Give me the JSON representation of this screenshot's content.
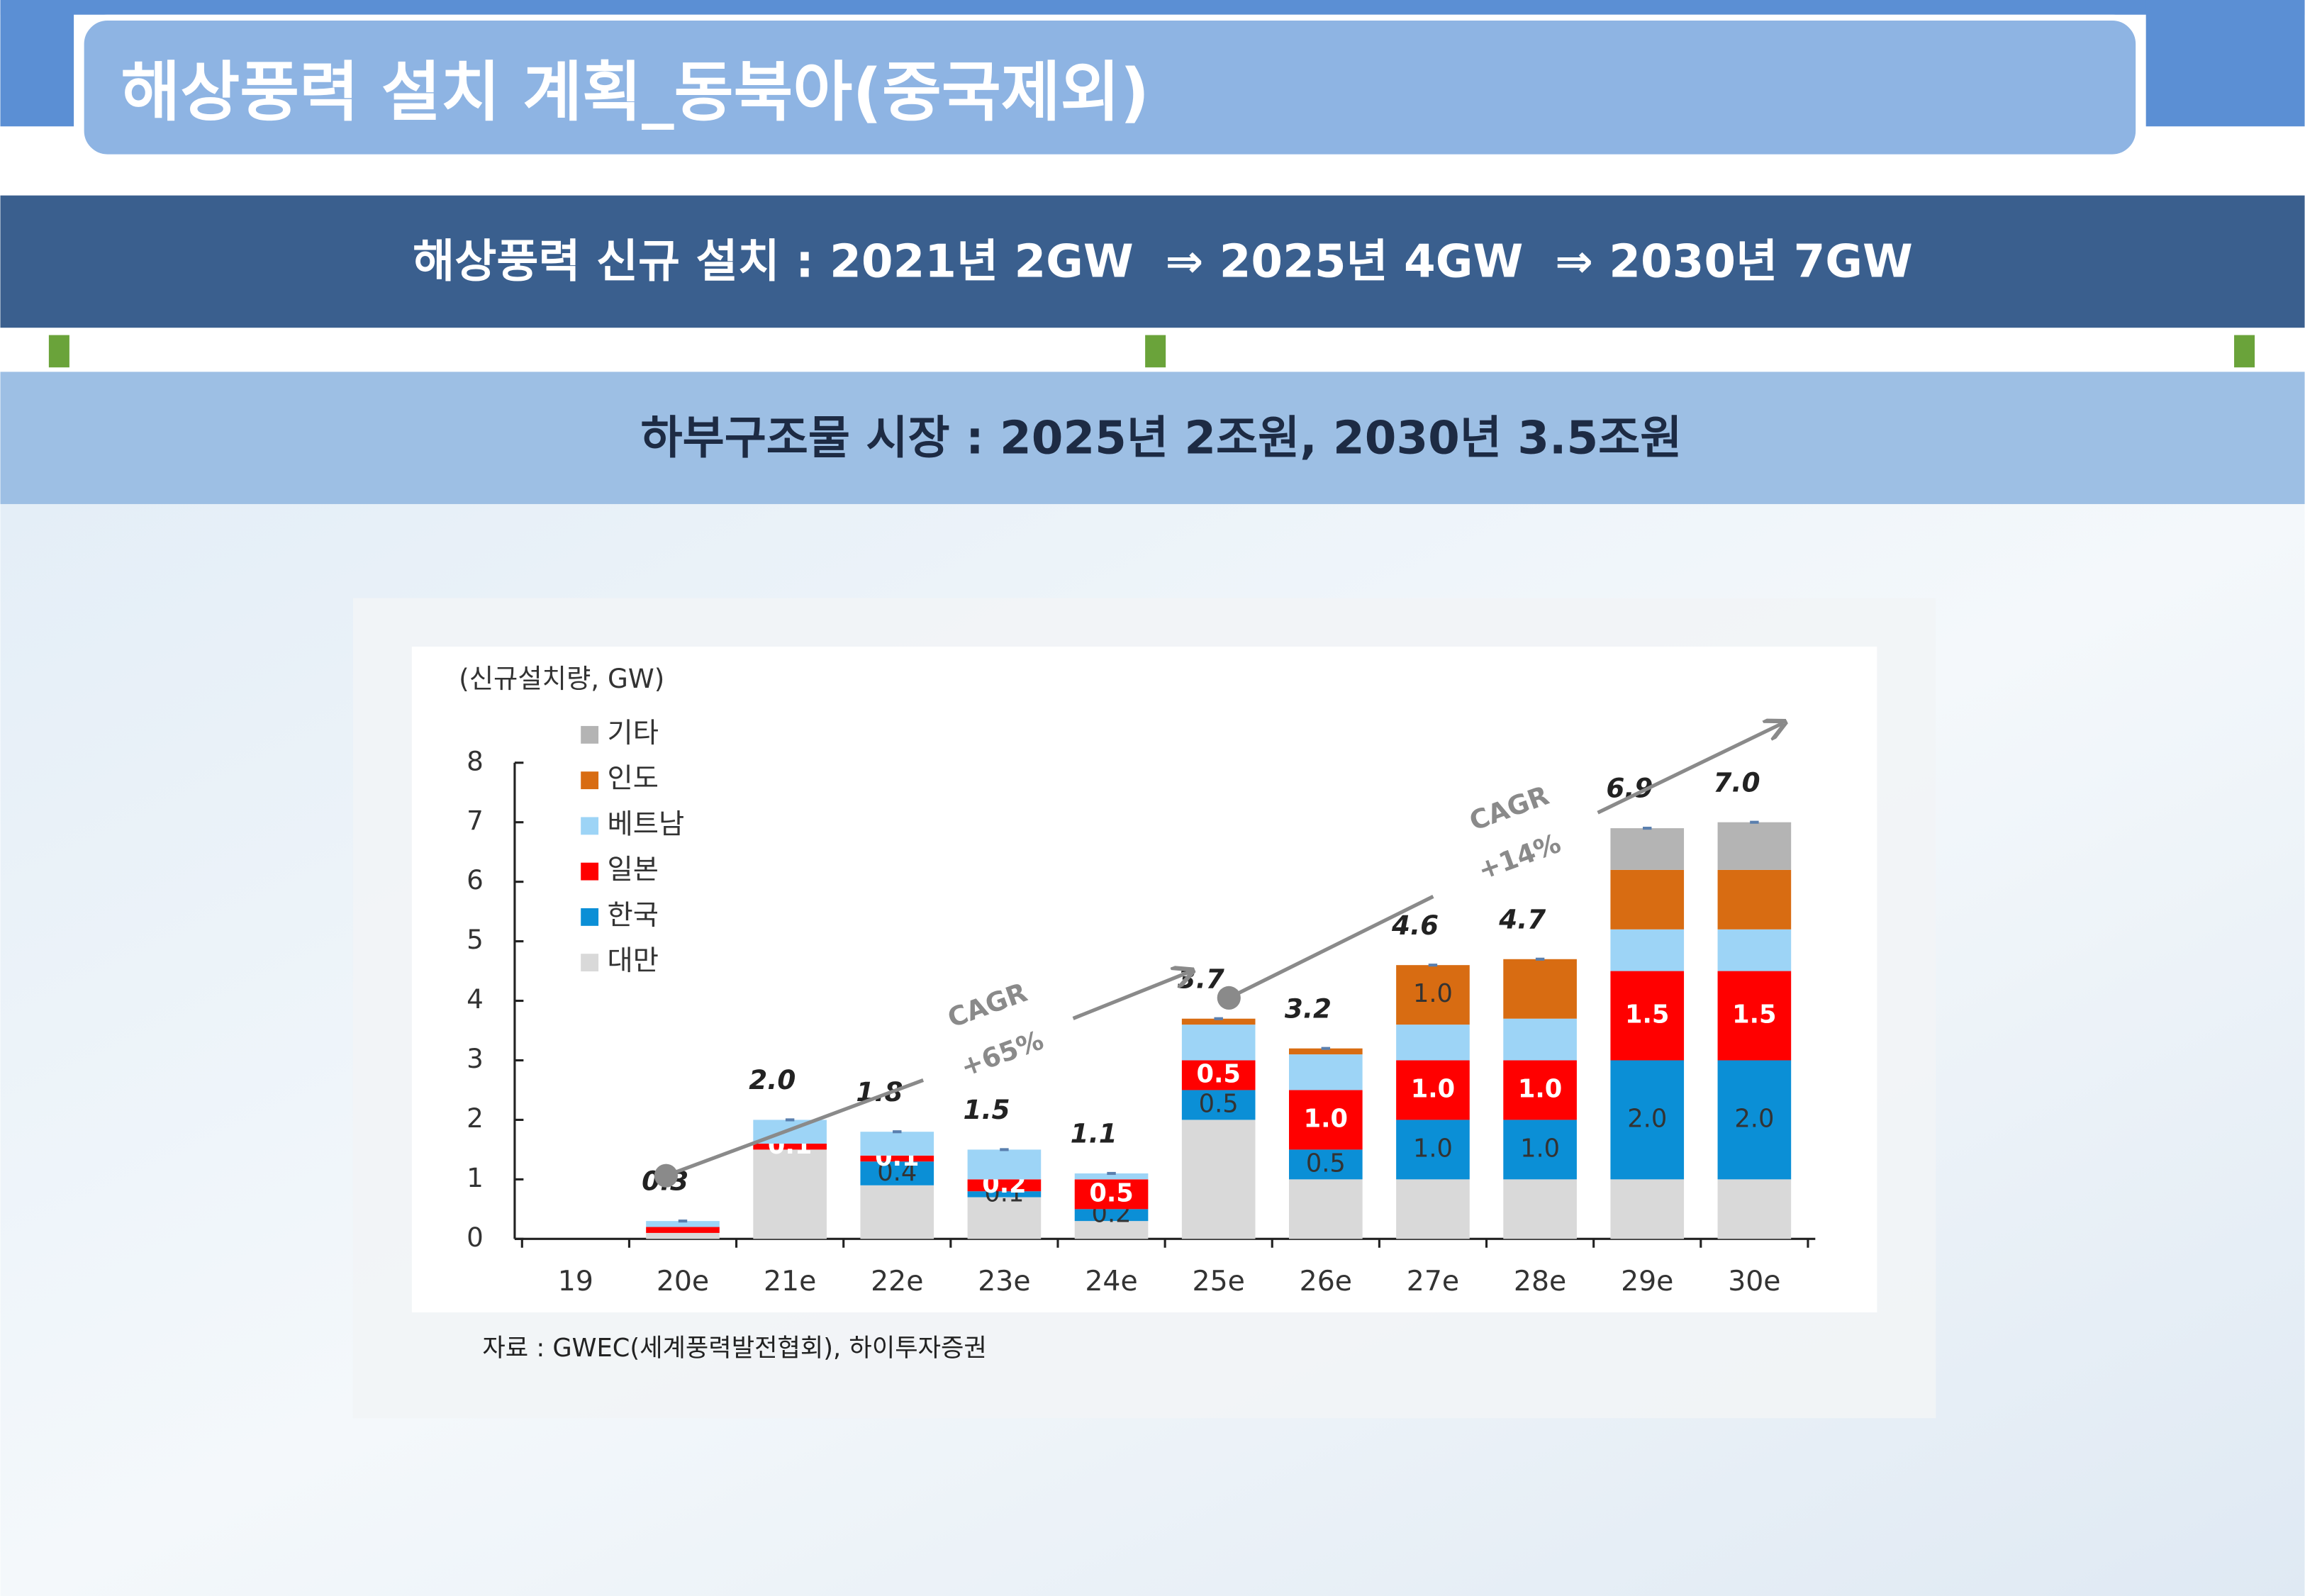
{
  "slide": {
    "title": "해상풍력 설치 계획_동북아(중국제외)",
    "banner": "해상풍력 신규 설치 : 2021년 2GW  ⇒ 2025년 4GW  ⇒ 2030년 7GW",
    "subbanner": "하부구조물 시장 : 2025년 2조원, 2030년 3.5조원",
    "source": "자료 : GWEC(세계풍력발전협회), 하이투자증권"
  },
  "chart_data": {
    "type": "stacked_bar",
    "y_label": "(신규설치량, GW)",
    "categories": [
      "19",
      "20e",
      "21e",
      "22e",
      "23e",
      "24e",
      "25e",
      "26e",
      "27e",
      "28e",
      "29e",
      "30e"
    ],
    "series": [
      {
        "name": "대만",
        "color": "#d9d9d9",
        "values": [
          0,
          0.1,
          1.5,
          0.9,
          0.7,
          0.3,
          2.0,
          1.0,
          1.0,
          1.0,
          1.0,
          1.0
        ],
        "value_labels": [
          null,
          null,
          null,
          null,
          null,
          null,
          null,
          null,
          null,
          null,
          null,
          null
        ]
      },
      {
        "name": "한국",
        "color": "#0b8fd6",
        "values": [
          0,
          0,
          0,
          0.4,
          0.1,
          0.2,
          0.5,
          0.5,
          1.0,
          1.0,
          2.0,
          2.0
        ],
        "value_labels": [
          null,
          null,
          null,
          "0.4",
          "0.1",
          "0.2",
          "0.5",
          "0.5",
          "1.0",
          "1.0",
          "2.0",
          "2.0"
        ]
      },
      {
        "name": "일본",
        "color": "#ff0000",
        "values": [
          0,
          0.1,
          0.1,
          0.1,
          0.2,
          0.5,
          0.5,
          1.0,
          1.0,
          1.0,
          1.5,
          1.5
        ],
        "value_labels": [
          null,
          null,
          "0.1",
          "0.1",
          "0.2",
          "0.5",
          "0.5",
          "1.0",
          "1.0",
          "1.0",
          "1.5",
          "1.5"
        ]
      },
      {
        "name": "베트남",
        "color": "#9dd4f6",
        "values": [
          0,
          0.1,
          0.4,
          0.4,
          0.5,
          0.1,
          0.6,
          0.6,
          0.6,
          0.7,
          0.7,
          0.7
        ],
        "value_labels": [
          null,
          null,
          null,
          null,
          null,
          null,
          null,
          null,
          null,
          null,
          null,
          null
        ]
      },
      {
        "name": "인도",
        "color": "#d86c12",
        "values": [
          0,
          0,
          0,
          0,
          0,
          0,
          0.1,
          0.1,
          1.0,
          1.0,
          1.0,
          1.0
        ],
        "value_labels": [
          null,
          null,
          null,
          null,
          null,
          null,
          null,
          null,
          "1.0",
          null,
          null,
          null
        ]
      },
      {
        "name": "기타",
        "color": "#b4b4b4",
        "values": [
          0,
          0,
          0,
          0,
          0,
          0,
          0,
          0,
          0,
          0,
          0.7,
          0.8
        ],
        "value_labels": [
          null,
          null,
          null,
          null,
          null,
          null,
          null,
          null,
          null,
          null,
          null,
          null
        ]
      }
    ],
    "totals": [
      null,
      0.3,
      2.0,
      1.8,
      1.5,
      1.1,
      3.7,
      3.2,
      4.6,
      4.7,
      6.9,
      7.0
    ],
    "total_labels": [
      null,
      "0.3",
      "2.0",
      "1.8",
      "1.5",
      "1.1",
      "3.7",
      "3.2",
      "4.6",
      "4.7",
      "6.9",
      "7.0"
    ],
    "ylim": [
      0,
      8
    ],
    "yticks": [
      0,
      1,
      2,
      3,
      4,
      5,
      6,
      7,
      8
    ],
    "annotations": [
      "CAGR",
      "+65%",
      "CAGR",
      "+14%"
    ],
    "legend": "top-left"
  }
}
